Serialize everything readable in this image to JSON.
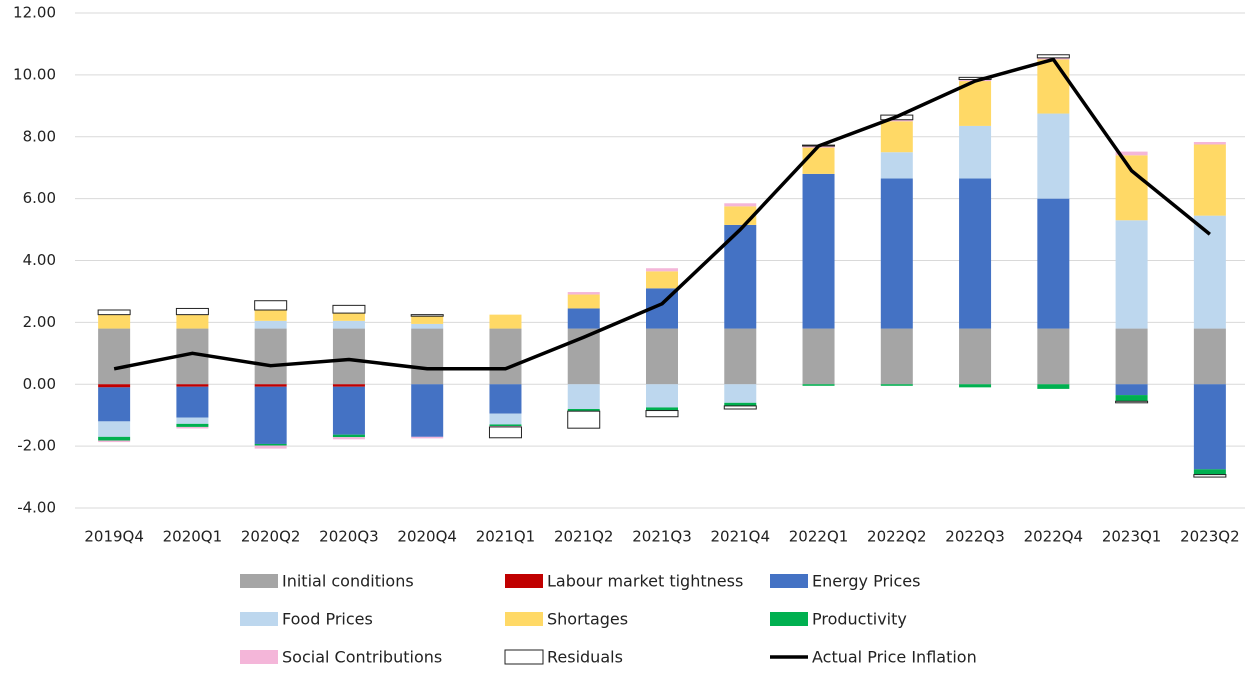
{
  "chart_data": {
    "type": "bar_line",
    "categories": [
      "2019Q4",
      "2020Q1",
      "2020Q2",
      "2020Q3",
      "2020Q4",
      "2021Q1",
      "2021Q2",
      "2021Q3",
      "2021Q4",
      "2022Q1",
      "2022Q2",
      "2022Q3",
      "2022Q4",
      "2023Q1",
      "2023Q2"
    ],
    "ylim": [
      -4,
      12
    ],
    "yticks": [
      {
        "value": -4,
        "label": "-4.00"
      },
      {
        "value": -2,
        "label": "-2.00"
      },
      {
        "value": 0,
        "label": "0.00"
      },
      {
        "value": 2,
        "label": "2.00"
      },
      {
        "value": 4,
        "label": "4.00"
      },
      {
        "value": 6,
        "label": "6.00"
      },
      {
        "value": 8,
        "label": "8.00"
      },
      {
        "value": 10,
        "label": "10.00"
      },
      {
        "value": 12,
        "label": "12.00"
      }
    ],
    "grid": true,
    "series": [
      {
        "name": "Initial conditions",
        "color": "#a5a5a5",
        "values": [
          1.8,
          1.8,
          1.8,
          1.8,
          1.8,
          1.8,
          1.8,
          1.8,
          1.8,
          1.8,
          1.8,
          1.8,
          1.8,
          1.8,
          1.8
        ]
      },
      {
        "name": "Labour market tightness",
        "color": "#c00000",
        "values": [
          -0.1,
          -0.08,
          -0.08,
          -0.08,
          0,
          0,
          0,
          0,
          0,
          0,
          0,
          0,
          0,
          0,
          0
        ]
      },
      {
        "name": "Energy Prices",
        "color": "#4472c4",
        "values": [
          -1.1,
          -1.0,
          -1.85,
          -1.55,
          -1.7,
          -0.95,
          0.65,
          1.3,
          3.35,
          5.0,
          4.85,
          4.85,
          4.2,
          -0.35,
          -2.75
        ]
      },
      {
        "name": "Food Prices",
        "color": "#bdd7ee",
        "values": [
          -0.5,
          -0.2,
          0.25,
          0.25,
          0.15,
          -0.35,
          -0.8,
          -0.75,
          -0.6,
          0,
          0.85,
          1.7,
          2.75,
          3.5,
          3.65
        ]
      },
      {
        "name": "Shortages",
        "color": "#ffd966",
        "values": [
          0.45,
          0.45,
          0.35,
          0.25,
          0.25,
          0.45,
          0.45,
          0.55,
          0.6,
          0.85,
          1.0,
          1.45,
          1.75,
          2.1,
          2.3
        ]
      },
      {
        "name": "Productivity",
        "color": "#00b050",
        "values": [
          -0.12,
          -0.1,
          -0.05,
          -0.08,
          0,
          -0.05,
          -0.07,
          -0.1,
          -0.1,
          -0.05,
          -0.05,
          -0.1,
          -0.15,
          -0.2,
          -0.17
        ]
      },
      {
        "name": "Social Contributions",
        "color": "#f4b6d9",
        "values": [
          -0.05,
          -0.05,
          -0.1,
          -0.07,
          -0.05,
          -0.03,
          0.08,
          0.1,
          0.1,
          0.05,
          0.05,
          0.05,
          0.05,
          0.12,
          0.08
        ]
      },
      {
        "name": "Residuals",
        "color": "#ffffff",
        "values": [
          0.15,
          0.2,
          0.3,
          0.25,
          0.05,
          -0.35,
          -0.55,
          -0.2,
          -0.1,
          0.03,
          0.15,
          0.07,
          0.1,
          -0.05,
          -0.08
        ]
      },
      {
        "name": "Actual Price Inflation",
        "color": "#000000",
        "type": "line",
        "values": [
          0.5,
          1.0,
          0.6,
          0.8,
          0.5,
          0.5,
          1.52,
          2.6,
          5.0,
          7.7,
          8.65,
          9.8,
          10.5,
          6.9,
          4.85
        ]
      }
    ]
  }
}
